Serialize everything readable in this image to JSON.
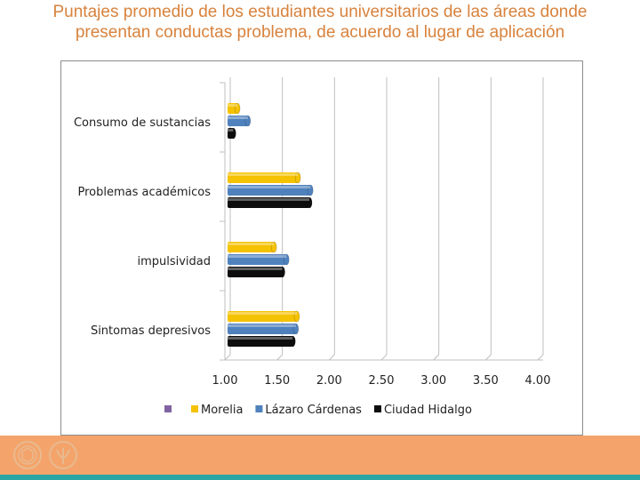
{
  "slide": {
    "title_line1": "Puntajes promedio de los estudiantes universitarios de las áreas donde",
    "title_line2": "presentan  conductas problema, de acuerdo al lugar de aplicación"
  },
  "chart_data": {
    "type": "bar",
    "orientation": "horizontal",
    "title": "Puntajes promedio de los estudiantes universitarios de las áreas donde presentan conductas problema, de acuerdo al lugar de aplicación",
    "categories": [
      "Consumo de sustancias",
      "Problemas académicos",
      "impulsividad",
      "Sintomas depresivos"
    ],
    "series": [
      {
        "name": "Morelia",
        "color": "#f5c200",
        "values": [
          1.12,
          1.7,
          1.47,
          1.69
        ]
      },
      {
        "name": "Lázaro Cárdenas",
        "color": "#4f81bd",
        "values": [
          1.22,
          1.82,
          1.59,
          1.68
        ]
      },
      {
        "name": "Ciudad Hidalgo",
        "color": "#0d0d0d",
        "values": [
          1.08,
          1.81,
          1.55,
          1.65
        ]
      }
    ],
    "legend_extra": {
      "color": "#8064a2",
      "name": ""
    },
    "xlim": [
      1.0,
      4.0
    ],
    "xticks": [
      1.0,
      1.5,
      2.0,
      2.5,
      3.0,
      3.5,
      4.0
    ],
    "xtick_labels": [
      "1.00",
      "1.50",
      "2.00",
      "2.50",
      "3.00",
      "3.50",
      "4.00"
    ],
    "xlabel": "",
    "ylabel": "",
    "grid": true,
    "legend_position": "bottom"
  },
  "colors": {
    "title": "#d8823c",
    "footer": "#f4a46a",
    "footer_line": "#2aa6a4"
  }
}
